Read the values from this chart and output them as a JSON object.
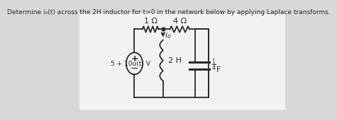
{
  "title": "Determine i₀(t) across the 2H inductor for t>0 in the network below by applying Laplace transforms.",
  "title_fontsize": 6.5,
  "bg_color": "#d8d8d8",
  "panel_color": "#f2f2f2",
  "line_color": "#2a2a2a",
  "resistor1_label": "1 Ω",
  "resistor2_label": "4 Ω",
  "inductor_label": "2 H",
  "source_label": "5 + 10u(t) V",
  "io_label": "i_o"
}
